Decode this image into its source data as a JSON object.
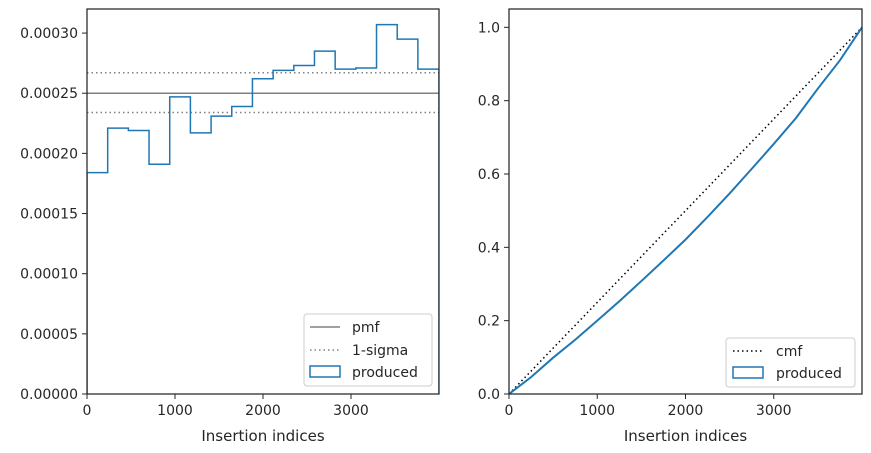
{
  "chart_data": [
    {
      "type": "histogram",
      "xlabel": "Insertion indices",
      "ylabel": "",
      "xlim": [
        0,
        4000
      ],
      "ylim": [
        0,
        0.00032
      ],
      "xticks": [
        0,
        1000,
        2000,
        3000
      ],
      "xtick_labels": [
        "0",
        "1000",
        "2000",
        "3000"
      ],
      "yticks": [
        0,
        5e-05,
        0.0001,
        0.00015,
        0.0002,
        0.00025,
        0.0003
      ],
      "ytick_labels": [
        "0.00000",
        "0.00005",
        "0.00010",
        "0.00015",
        "0.00020",
        "0.00025",
        "0.00030"
      ],
      "grid": false,
      "legend_position": "lower right",
      "pmf": 0.00025,
      "sigma_band": [
        0.000234,
        0.000267
      ],
      "series": [
        {
          "name": "pmf",
          "style": "solid",
          "color": "#808080"
        },
        {
          "name": "1-sigma",
          "style": "dotted",
          "color": "#808080"
        },
        {
          "name": "produced",
          "style": "step",
          "color": "#1f77b4",
          "bin_edges": [
            0,
            235,
            470,
            705,
            940,
            1175,
            1410,
            1645,
            1880,
            2115,
            2350,
            2585,
            2820,
            3055,
            3290,
            3525,
            3760,
            4000
          ],
          "values": [
            0.000184,
            0.000221,
            0.000219,
            0.000191,
            0.000247,
            0.000217,
            0.000231,
            0.000239,
            0.000262,
            0.000269,
            0.000273,
            0.000285,
            0.00027,
            0.000271,
            0.000307,
            0.000295,
            0.00027
          ]
        }
      ]
    },
    {
      "type": "line",
      "xlabel": "Insertion indices",
      "ylabel": "",
      "xlim": [
        0,
        4000
      ],
      "ylim": [
        0,
        1.05
      ],
      "xticks": [
        0,
        1000,
        2000,
        3000
      ],
      "xtick_labels": [
        "0",
        "1000",
        "2000",
        "3000"
      ],
      "yticks": [
        0,
        0.2,
        0.4,
        0.6,
        0.8,
        1.0
      ],
      "ytick_labels": [
        "0.0",
        "0.2",
        "0.4",
        "0.6",
        "0.8",
        "1.0"
      ],
      "grid": false,
      "legend_position": "lower right",
      "series": [
        {
          "name": "cmf",
          "style": "dotted",
          "color": "#000000",
          "x": [
            0,
            4000
          ],
          "y": [
            0,
            1.0
          ]
        },
        {
          "name": "produced",
          "style": "solid",
          "color": "#1f77b4",
          "x": [
            0,
            250,
            500,
            750,
            1000,
            1250,
            1500,
            1750,
            2000,
            2250,
            2500,
            2750,
            3000,
            3250,
            3500,
            3750,
            4000
          ],
          "y": [
            0,
            0.046,
            0.099,
            0.148,
            0.2,
            0.253,
            0.308,
            0.364,
            0.421,
            0.483,
            0.547,
            0.614,
            0.682,
            0.752,
            0.833,
            0.91,
            1.0
          ]
        }
      ]
    }
  ]
}
